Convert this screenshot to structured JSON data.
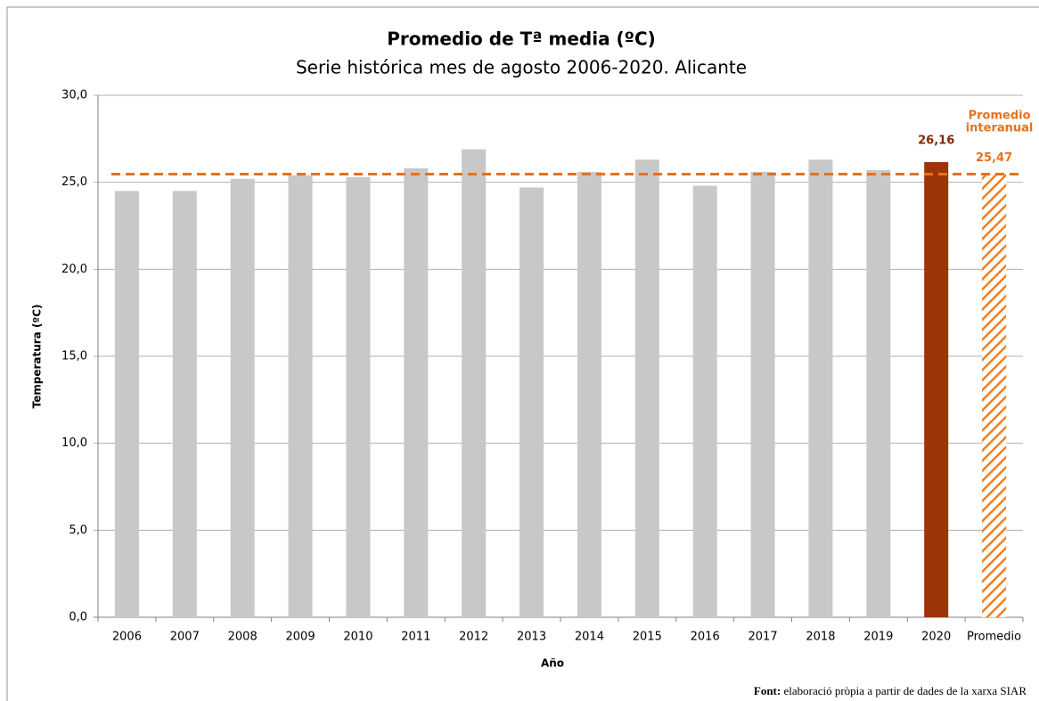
{
  "chart_data": {
    "type": "bar",
    "title": "Promedio de Tª media (ºC)",
    "subtitle": "Serie histórica mes de agosto 2006-2020. Alicante",
    "y_label": "Temperatura (ºC)",
    "x_label": "Año",
    "categories": [
      "2006",
      "2007",
      "2008",
      "2009",
      "2010",
      "2011",
      "2012",
      "2013",
      "2014",
      "2015",
      "2016",
      "2017",
      "2018",
      "2019",
      "2020",
      "Promedio"
    ],
    "values": [
      24.5,
      24.5,
      25.2,
      25.4,
      25.3,
      25.8,
      26.9,
      24.7,
      25.6,
      26.3,
      24.8,
      25.6,
      26.3,
      25.7,
      26.16,
      25.47
    ],
    "value_labels": [
      null,
      null,
      null,
      null,
      null,
      null,
      null,
      null,
      null,
      null,
      null,
      null,
      null,
      null,
      "26,16",
      "25,47"
    ],
    "colors": [
      "#c8c8c8",
      "#c8c8c8",
      "#c8c8c8",
      "#c8c8c8",
      "#c8c8c8",
      "#c8c8c8",
      "#c8c8c8",
      "#c8c8c8",
      "#c8c8c8",
      "#c8c8c8",
      "#c8c8c8",
      "#c8c8c8",
      "#c8c8c8",
      "#c8c8c8",
      "#9c3408",
      "#f07f22"
    ],
    "hatch": [
      false,
      false,
      false,
      false,
      false,
      false,
      false,
      false,
      false,
      false,
      false,
      false,
      false,
      false,
      false,
      true
    ],
    "label_colors": {
      "2020": "#7f2a06",
      "average": "#e8711a"
    },
    "average_line_color": "#e8711a",
    "annotation_lines": [
      "Promedio",
      "interanual"
    ],
    "ylim": [
      0,
      30
    ],
    "yticks": [
      {
        "value": 0,
        "label": "0,0"
      },
      {
        "value": 5,
        "label": "5,0"
      },
      {
        "value": 10,
        "label": "10,0"
      },
      {
        "value": 15,
        "label": "15,0"
      },
      {
        "value": 20,
        "label": "20,0"
      },
      {
        "value": 25,
        "label": "25,0"
      },
      {
        "value": 30,
        "label": "30,0"
      }
    ],
    "grid": true,
    "source_label": "Font:",
    "source_text": "elaboració pròpia a partir de dades de la xarxa SIAR"
  }
}
